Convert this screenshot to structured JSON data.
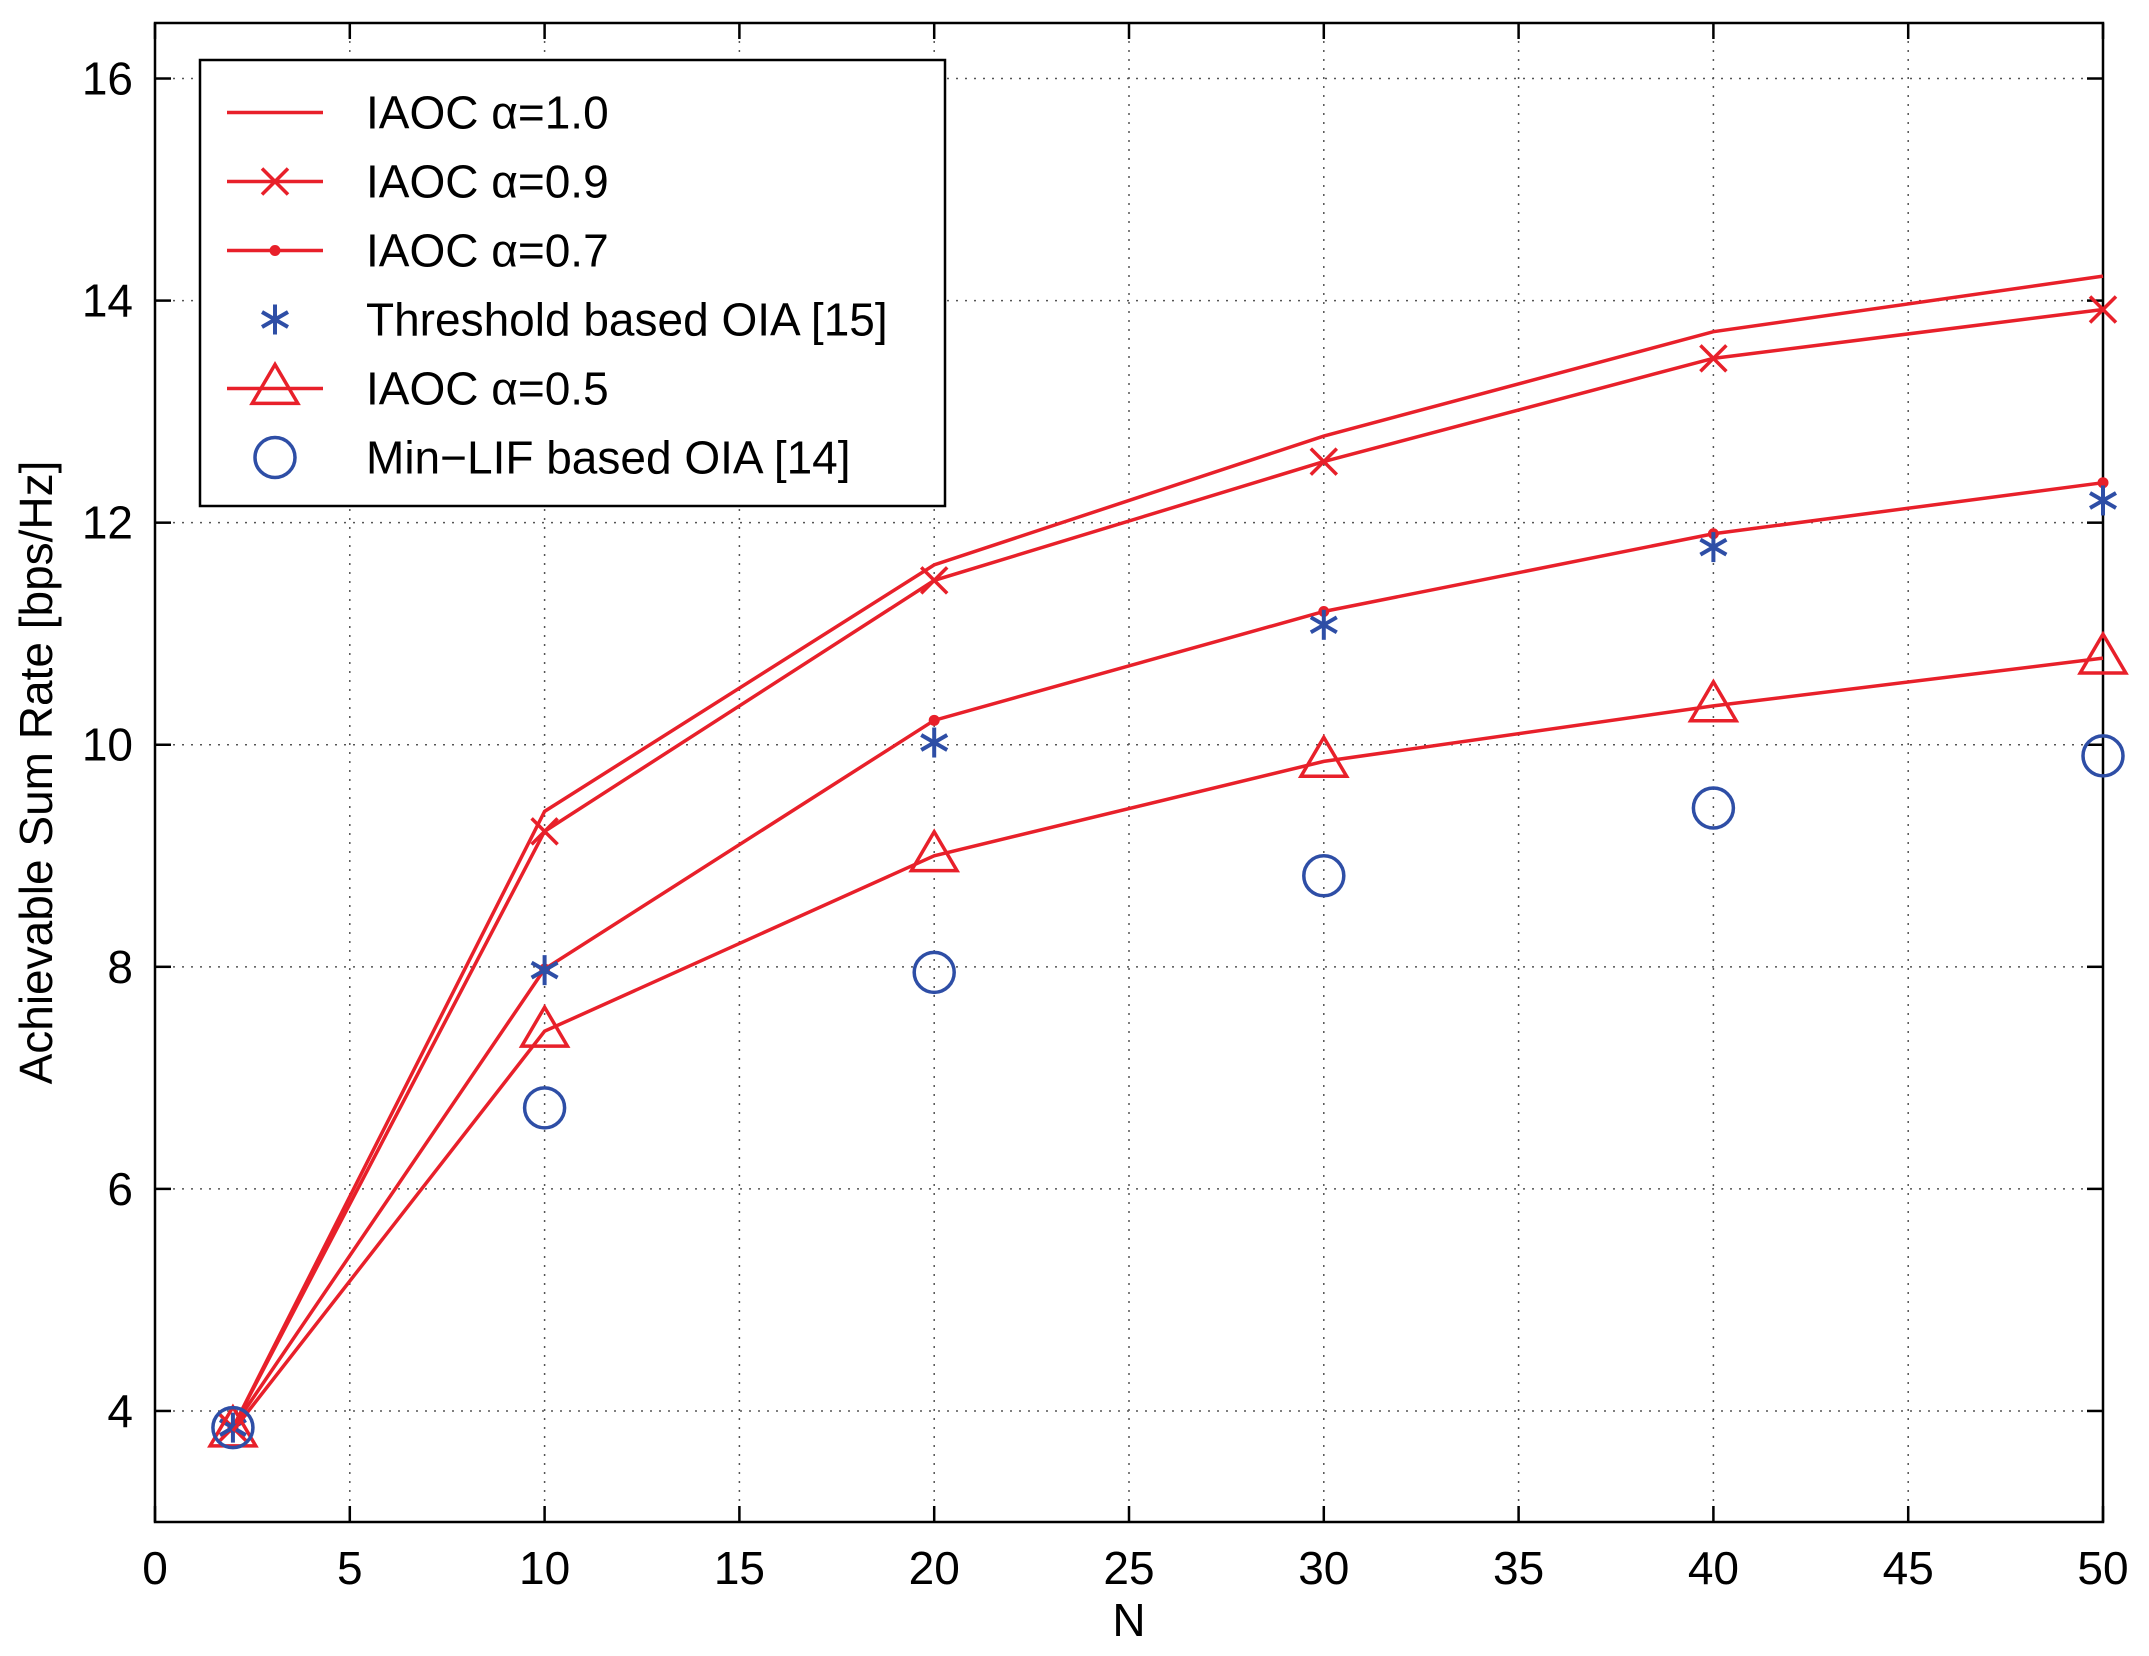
{
  "chart_data": {
    "type": "line",
    "title": "",
    "xlabel": "N",
    "ylabel": "Achievable Sum Rate [bps/Hz]",
    "xlim": [
      0,
      50
    ],
    "ylim": [
      3,
      16.5
    ],
    "xticks": [
      0,
      5,
      10,
      15,
      20,
      25,
      30,
      35,
      40,
      45,
      50
    ],
    "yticks": [
      4,
      6,
      8,
      10,
      12,
      14,
      16
    ],
    "grid": true,
    "legend_position": "top-left",
    "x": [
      2,
      10,
      20,
      30,
      40,
      50
    ],
    "series": [
      {
        "name": "IAOC α=1.0",
        "line": true,
        "marker": "none",
        "color": "#e8202a",
        "values": [
          3.85,
          9.4,
          11.62,
          12.78,
          13.72,
          14.22
        ]
      },
      {
        "name": "IAOC α=0.9",
        "line": true,
        "marker": "x",
        "color": "#e8202a",
        "values": [
          3.85,
          9.22,
          11.48,
          12.55,
          13.48,
          13.92
        ]
      },
      {
        "name": "IAOC α=0.7",
        "line": true,
        "marker": "dot",
        "color": "#e8202a",
        "values": [
          3.85,
          7.98,
          10.22,
          11.2,
          11.9,
          12.36
        ]
      },
      {
        "name": "Threshold based OIA [15]",
        "line": false,
        "marker": "star",
        "color": "#2e4ea6",
        "values": [
          3.85,
          7.97,
          10.02,
          11.08,
          11.78,
          12.2
        ]
      },
      {
        "name": "IAOC α=0.5",
        "line": true,
        "marker": "triangle",
        "color": "#e8202a",
        "values": [
          3.82,
          7.42,
          9.0,
          9.85,
          10.35,
          10.78
        ]
      },
      {
        "name": "Min−LIF based OIA [14]",
        "line": false,
        "marker": "circle",
        "color": "#2e4ea6",
        "values": [
          3.85,
          6.73,
          7.95,
          8.82,
          9.43,
          9.9
        ]
      }
    ]
  }
}
